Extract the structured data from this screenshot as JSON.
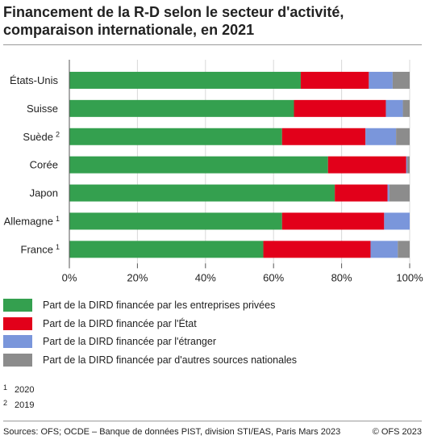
{
  "title": "Financement de la R-D selon le secteur d'activité, comparaison internationale, en 2021",
  "colors": {
    "entreprises": "#34a04f",
    "etat": "#e2001a",
    "etranger": "#7a96db",
    "autres": "#8c8c8c",
    "grid": "#d8d8d8",
    "axis": "#555555"
  },
  "chart_data": {
    "type": "bar",
    "orientation": "horizontal",
    "stacked": true,
    "categories": [
      "États-Unis",
      "Suisse",
      "Suède",
      "Corée",
      "Japon",
      "Allemagne",
      "France"
    ],
    "category_notes": [
      "",
      "",
      "2",
      "",
      "",
      "1",
      "1"
    ],
    "series": [
      {
        "name": "Part de la DIRD financée par les entreprises privées",
        "color_key": "entreprises",
        "values": [
          68.0,
          66.0,
          62.5,
          76.0,
          78.0,
          62.5,
          57.0
        ]
      },
      {
        "name": "Part de la DIRD financée par l'État",
        "color_key": "etat",
        "values": [
          20.0,
          27.0,
          24.5,
          23.0,
          15.5,
          30.0,
          31.5
        ]
      },
      {
        "name": "Part de la DIRD financée par l'étranger",
        "color_key": "etranger",
        "values": [
          7.0,
          5.0,
          9.0,
          0.3,
          0.5,
          7.5,
          8.0
        ]
      },
      {
        "name": "Part de la DIRD financée par d'autres sources nationales",
        "color_key": "autres",
        "values": [
          5.0,
          2.0,
          4.0,
          0.7,
          6.0,
          0.0,
          3.5
        ]
      }
    ],
    "xlim": [
      0,
      100
    ],
    "x_ticks": [
      "0%",
      "20%",
      "40%",
      "60%",
      "80%",
      "100%"
    ],
    "grid": true,
    "legend_position": "bottom"
  },
  "notes": [
    {
      "marker": "1",
      "text": "2020"
    },
    {
      "marker": "2",
      "text": "2019"
    }
  ],
  "footer": {
    "source": "Sources: OFS; OCDE – Banque de données PIST, division STI/EAS, Paris Mars 2023",
    "copyright": "© OFS 2023"
  }
}
